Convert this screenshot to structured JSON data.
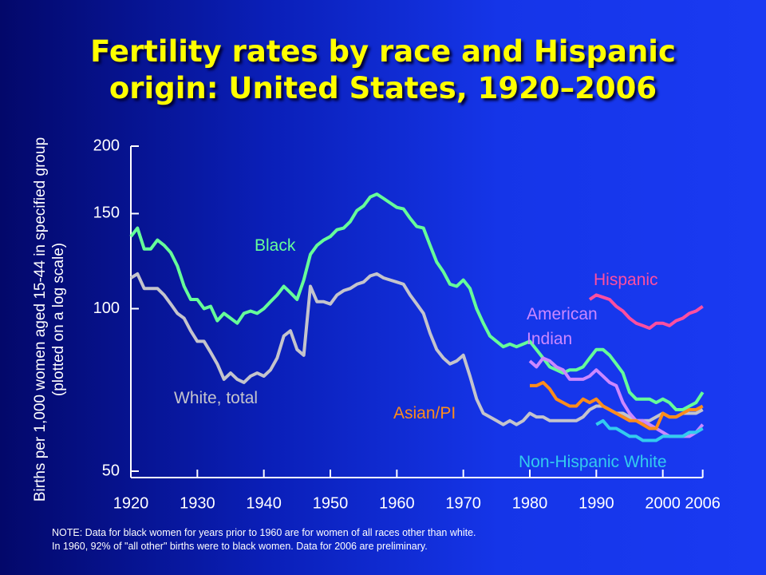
{
  "chart_data": {
    "type": "line",
    "title": "Fertility rates by race and Hispanic origin: United States, 1920–2006",
    "ylabel": "Births per 1,000 women aged 15-44 in specified group (plotted on a log scale)",
    "note": [
      "NOTE: Data for black women for years prior to 1960 are for women of all races other than white.",
      "In 1960, 92% of \"all other\" births were to black women.  Data for 2006 are preliminary."
    ],
    "log_y": true,
    "ylim": [
      50,
      200
    ],
    "yticks": [
      50,
      100,
      150,
      200
    ],
    "xlim": [
      1920,
      2010
    ],
    "xticks": [
      1920,
      1930,
      1940,
      1950,
      1960,
      1970,
      1980,
      1990,
      2000,
      2006
    ],
    "x": [
      1920,
      1921,
      1922,
      1923,
      1924,
      1925,
      1926,
      1927,
      1928,
      1929,
      1930,
      1931,
      1932,
      1933,
      1934,
      1935,
      1936,
      1937,
      1938,
      1939,
      1940,
      1941,
      1942,
      1943,
      1944,
      1945,
      1946,
      1947,
      1948,
      1949,
      1950,
      1951,
      1952,
      1953,
      1954,
      1955,
      1956,
      1957,
      1958,
      1959,
      1960,
      1961,
      1962,
      1963,
      1964,
      1965,
      1966,
      1967,
      1968,
      1969,
      1970,
      1971,
      1972,
      1973,
      1974,
      1975,
      1976,
      1977,
      1978,
      1979,
      1980,
      1981,
      1982,
      1983,
      1984,
      1985,
      1986,
      1987,
      1988,
      1989,
      1990,
      1991,
      1992,
      1993,
      1994,
      1995,
      1996,
      1997,
      1998,
      1999,
      2000,
      2001,
      2002,
      2003,
      2004,
      2005,
      2006
    ],
    "series": [
      {
        "name": "Black",
        "color": "#66ff99",
        "values": [
          136,
          141,
          129,
          129,
          134,
          131,
          127,
          120,
          110,
          104,
          104,
          100,
          101,
          95,
          98,
          96,
          94,
          98,
          99,
          98,
          100,
          103,
          106,
          110,
          107,
          104,
          113,
          126,
          131,
          134,
          136,
          140,
          141,
          145,
          152,
          155,
          161,
          163,
          160,
          157,
          154,
          153,
          147,
          142,
          141,
          131,
          122,
          117,
          111,
          110,
          113,
          109,
          100,
          94,
          89,
          87,
          85,
          86,
          85,
          86,
          87,
          84,
          81,
          78,
          77,
          76,
          77,
          77,
          78,
          81,
          84,
          84,
          82,
          79,
          76,
          70,
          68,
          68,
          68,
          67,
          68,
          67,
          65,
          65,
          66,
          67,
          70
        ]
      },
      {
        "name": "White, total",
        "color": "#c4c4cc",
        "values": [
          114,
          116,
          109,
          109,
          109,
          106,
          102,
          98,
          96,
          91,
          87,
          87,
          83,
          79,
          74,
          76,
          74,
          73,
          75,
          76,
          75,
          77,
          81,
          89,
          91,
          84,
          82,
          110,
          103,
          103,
          102,
          106,
          108,
          109,
          111,
          112,
          115,
          116,
          114,
          113,
          112,
          111,
          106,
          102,
          98,
          90,
          84,
          81,
          79,
          80,
          82,
          75,
          68,
          64,
          63,
          62,
          61,
          62,
          61,
          62,
          64,
          63,
          63,
          62,
          62,
          62,
          62,
          62,
          63,
          65,
          66,
          66,
          65,
          64,
          64,
          63,
          62,
          62,
          62,
          63,
          64,
          63,
          63,
          64,
          64,
          64,
          65
        ]
      },
      {
        "name": "Hispanic",
        "color": "#ff4fa0",
        "values": [
          null,
          null,
          null,
          null,
          null,
          null,
          null,
          null,
          null,
          null,
          null,
          null,
          null,
          null,
          null,
          null,
          null,
          null,
          null,
          null,
          null,
          null,
          null,
          null,
          null,
          null,
          null,
          null,
          null,
          null,
          null,
          null,
          null,
          null,
          null,
          null,
          null,
          null,
          null,
          null,
          null,
          null,
          null,
          null,
          null,
          null,
          null,
          null,
          null,
          null,
          null,
          null,
          null,
          null,
          null,
          null,
          null,
          null,
          null,
          null,
          null,
          null,
          null,
          null,
          null,
          null,
          null,
          null,
          null,
          104,
          106,
          105,
          104,
          101,
          99,
          96,
          94,
          93,
          92,
          94,
          94,
          93,
          95,
          96,
          98,
          99,
          101
        ]
      },
      {
        "name": "American Indian",
        "color": "#cc88ff",
        "values": [
          null,
          null,
          null,
          null,
          null,
          null,
          null,
          null,
          null,
          null,
          null,
          null,
          null,
          null,
          null,
          null,
          null,
          null,
          null,
          null,
          null,
          null,
          null,
          null,
          null,
          null,
          null,
          null,
          null,
          null,
          null,
          null,
          null,
          null,
          null,
          null,
          null,
          null,
          null,
          null,
          null,
          null,
          null,
          null,
          null,
          null,
          null,
          null,
          null,
          null,
          null,
          null,
          null,
          null,
          null,
          null,
          null,
          null,
          null,
          null,
          80,
          78,
          81,
          80,
          78,
          77,
          74,
          74,
          74,
          75,
          77,
          75,
          73,
          72,
          67,
          64,
          62,
          62,
          61,
          60,
          59,
          58,
          58,
          58,
          58,
          59,
          61
        ]
      },
      {
        "name": "Asian/PI",
        "color": "#ff8c1a",
        "values": [
          null,
          null,
          null,
          null,
          null,
          null,
          null,
          null,
          null,
          null,
          null,
          null,
          null,
          null,
          null,
          null,
          null,
          null,
          null,
          null,
          null,
          null,
          null,
          null,
          null,
          null,
          null,
          null,
          null,
          null,
          null,
          null,
          null,
          null,
          null,
          null,
          null,
          null,
          null,
          null,
          null,
          null,
          null,
          null,
          null,
          null,
          null,
          null,
          null,
          null,
          null,
          null,
          null,
          null,
          null,
          null,
          null,
          null,
          null,
          null,
          72,
          72,
          73,
          71,
          68,
          67,
          66,
          66,
          68,
          67,
          68,
          66,
          65,
          64,
          63,
          62,
          62,
          61,
          60,
          60,
          64,
          63,
          63,
          64,
          65,
          65,
          66
        ]
      },
      {
        "name": "Non-Hispanic White",
        "color": "#33ccee",
        "values": [
          null,
          null,
          null,
          null,
          null,
          null,
          null,
          null,
          null,
          null,
          null,
          null,
          null,
          null,
          null,
          null,
          null,
          null,
          null,
          null,
          null,
          null,
          null,
          null,
          null,
          null,
          null,
          null,
          null,
          null,
          null,
          null,
          null,
          null,
          null,
          null,
          null,
          null,
          null,
          null,
          null,
          null,
          null,
          null,
          null,
          null,
          null,
          null,
          null,
          null,
          null,
          null,
          null,
          null,
          null,
          null,
          null,
          null,
          null,
          null,
          null,
          null,
          null,
          null,
          null,
          null,
          null,
          null,
          null,
          null,
          61,
          62,
          60,
          60,
          59,
          58,
          58,
          57,
          57,
          57,
          58,
          58,
          58,
          58,
          59,
          59,
          60
        ]
      }
    ]
  }
}
